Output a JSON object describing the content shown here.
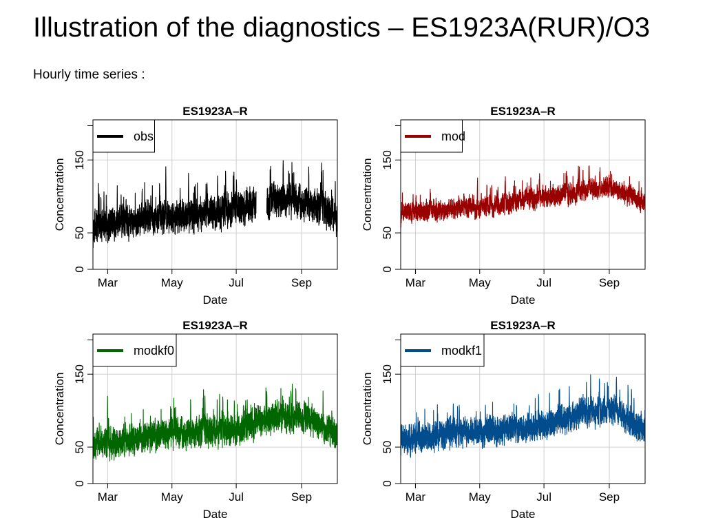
{
  "page": {
    "title": "Illustration of the diagnostics – ES1923A(RUR)/O3",
    "subtitle": "Hourly time series :"
  },
  "chart_data": [
    {
      "type": "line",
      "title": "ES1923A–R",
      "xlabel": "Date",
      "ylabel": "Concentration",
      "xlim": [
        "2015-02-15",
        "2015-10-05"
      ],
      "ylim": [
        0,
        205
      ],
      "xticks": [
        "Mar",
        "May",
        "Jul",
        "Sep"
      ],
      "yticks": [
        0,
        50,
        150
      ],
      "grid": true,
      "legend_position": "top-left",
      "series": [
        {
          "name": "obs",
          "color": "#000000",
          "level": [
            58,
            65,
            72,
            70,
            78,
            85,
            95,
            92,
            70
          ],
          "spread": 55,
          "gap": [
            "2015-07-20",
            "2015-07-30"
          ]
        }
      ]
    },
    {
      "type": "line",
      "title": "ES1923A–R",
      "xlabel": "Date",
      "ylabel": "Concentration",
      "xlim": [
        "2015-02-15",
        "2015-10-05"
      ],
      "ylim": [
        0,
        205
      ],
      "xticks": [
        "Mar",
        "May",
        "Jul",
        "Sep"
      ],
      "yticks": [
        0,
        50,
        150
      ],
      "grid": true,
      "legend_position": "top-left",
      "series": [
        {
          "name": "mod",
          "color": "#990000",
          "level": [
            78,
            80,
            84,
            86,
            95,
            100,
            108,
            112,
            90
          ],
          "spread": 32
        }
      ]
    },
    {
      "type": "line",
      "title": "ES1923A–R",
      "xlabel": "Date",
      "ylabel": "Concentration",
      "xlim": [
        "2015-02-15",
        "2015-10-05"
      ],
      "ylim": [
        0,
        205
      ],
      "xticks": [
        "Mar",
        "May",
        "Jul",
        "Sep"
      ],
      "yticks": [
        0,
        50,
        150
      ],
      "grid": true,
      "legend_position": "top-left",
      "series": [
        {
          "name": "modkf0",
          "color": "#006600",
          "level": [
            52,
            58,
            66,
            70,
            70,
            78,
            92,
            90,
            65
          ],
          "spread": 50
        }
      ]
    },
    {
      "type": "line",
      "title": "ES1923A–R",
      "xlabel": "Date",
      "ylabel": "Concentration",
      "xlim": [
        "2015-02-15",
        "2015-10-05"
      ],
      "ylim": [
        0,
        205
      ],
      "xticks": [
        "Mar",
        "May",
        "Jul",
        "Sep"
      ],
      "yticks": [
        0,
        50,
        150
      ],
      "grid": true,
      "legend_position": "top-left",
      "series": [
        {
          "name": "modkf1",
          "color": "#004C8C",
          "level": [
            60,
            64,
            70,
            72,
            76,
            84,
            98,
            100,
            72
          ],
          "spread": 48
        }
      ]
    }
  ]
}
